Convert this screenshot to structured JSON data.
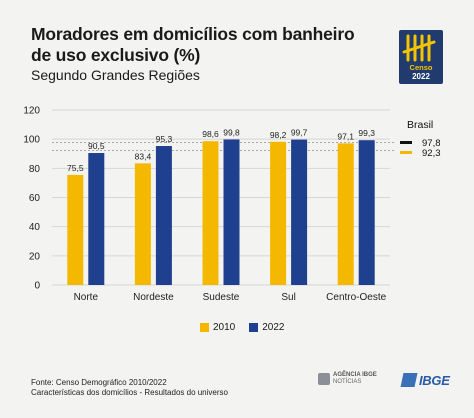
{
  "header": {
    "title": "Moradores em domicílios com banheiro de uso exclusivo (%)",
    "subtitle": "Segundo Grandes Regiões"
  },
  "logo": {
    "word": "Censo",
    "year": "2022"
  },
  "chart_data": {
    "type": "bar",
    "categories": [
      "Norte",
      "Nordeste",
      "Sudeste",
      "Sul",
      "Centro-Oeste"
    ],
    "series": [
      {
        "name": "2010",
        "color": "#f5b800",
        "values": [
          75.5,
          83.4,
          98.6,
          98.2,
          97.1
        ],
        "labels": [
          "75,5",
          "83,4",
          "98,6",
          "98,2",
          "97,1"
        ]
      },
      {
        "name": "2022",
        "color": "#1f3f8f",
        "values": [
          90.5,
          95.3,
          99.8,
          99.7,
          99.3
        ],
        "labels": [
          "90,5",
          "95,3",
          "99,8",
          "99,7",
          "99,3"
        ]
      }
    ],
    "ylim": [
      0,
      120
    ],
    "yticks": [
      0,
      20,
      40,
      60,
      80,
      100,
      120
    ],
    "grid": true,
    "reference": {
      "title": "Brasil",
      "lines": [
        {
          "series": "2022",
          "value": 97.8,
          "label": "97,8",
          "color": "#111111"
        },
        {
          "series": "2010",
          "value": 92.3,
          "label": "92,3",
          "color": "#f5b800"
        }
      ]
    },
    "legend_position": "bottom"
  },
  "footer": {
    "source": "Fonte: Censo Demográfico 2010/2022",
    "note": "Características dos domicílios - Resultados do universo"
  },
  "brand": {
    "agencia_top": "AGÊNCIA IBGE",
    "agencia_bottom": "NOTÍCIAS",
    "ibge": "IBGE"
  }
}
